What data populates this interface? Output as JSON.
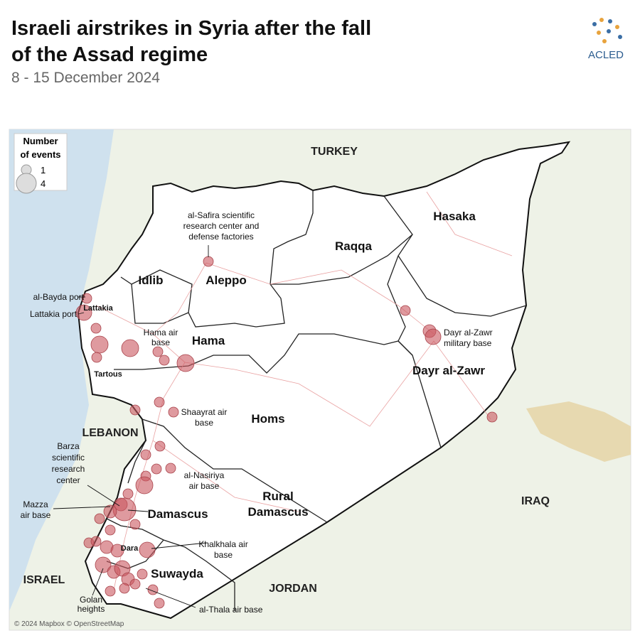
{
  "header": {
    "title": [
      "Israeli airstrikes in Syria after the fall",
      "of the Assad regime"
    ],
    "subtitle": "8 - 15 December 2024",
    "logo": "ACLED"
  },
  "legend": {
    "title": [
      "Number",
      "of events"
    ],
    "items": [
      1,
      4
    ]
  },
  "map": {
    "countries": [
      "TURKEY",
      "LEBANON",
      "ISRAEL",
      "JORDAN",
      "IRAQ"
    ],
    "regions": [
      "Idlib",
      "Aleppo",
      "Raqqa",
      "Hasaka",
      "Lattakia",
      "Hama",
      "Tartous",
      "Dayr al-Zawr",
      "Homs",
      [
        "Rural",
        "Damascus"
      ],
      "Damascus",
      "Dara",
      "Suwayda"
    ],
    "annotations": [
      [
        "al-Safira scientific",
        "research center and",
        "defense factories"
      ],
      [
        "al-Bayda port"
      ],
      [
        "Lattakia port"
      ],
      [
        "Hama air",
        "base"
      ],
      [
        "Dayr al-Zawr",
        "military base"
      ],
      [
        "Shaayrat air",
        "base"
      ],
      [
        "Barza",
        "scientific",
        "research",
        "center"
      ],
      [
        "al-Nasiriya",
        "air base"
      ],
      [
        "Mazza",
        "air base"
      ],
      [
        "Khalkhala air",
        "base"
      ],
      [
        "Golan",
        "heights"
      ],
      [
        "al-Thala air base"
      ]
    ]
  },
  "credit": "© 2024 Mapbox © OpenStreetMap"
}
